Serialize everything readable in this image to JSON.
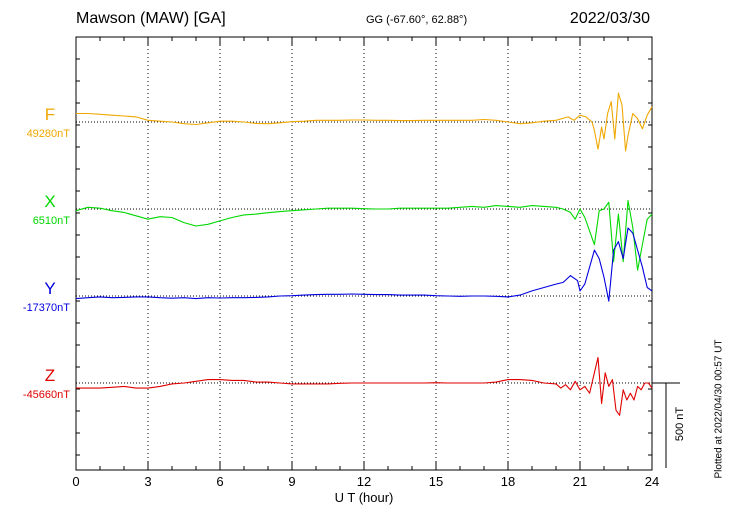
{
  "header": {
    "title": "Mawson (MAW)  [GA]",
    "coords": "GG (-67.60°,  62.88°)",
    "date": "2022/03/30"
  },
  "footer": {
    "plotted": "Plotted at 2022/04/30 00:57 UT",
    "scale_label": "500 nT"
  },
  "chart_data": {
    "type": "line",
    "xlabel": "U T (hour)",
    "xlim": [
      0,
      24
    ],
    "xticks": [
      "0",
      "3",
      "6",
      "9",
      "12",
      "15",
      "18",
      "21",
      "24"
    ],
    "grid": true,
    "scale_bar_nT": 500,
    "series": [
      {
        "name": "F",
        "baseline_label": "49280nT",
        "baseline": 49280,
        "color": "#f0a800",
        "x": [
          0,
          0.5,
          1,
          1.5,
          2,
          2.5,
          3,
          3.5,
          4,
          4.5,
          5,
          5.5,
          6,
          6.5,
          7,
          7.5,
          8,
          8.5,
          9,
          9.5,
          10,
          10.5,
          11,
          11.5,
          12,
          12.5,
          13,
          13.5,
          14,
          14.5,
          15,
          15.5,
          16,
          16.5,
          17,
          17.5,
          18,
          18.5,
          19,
          19.5,
          20,
          20.25,
          20.5,
          20.75,
          21,
          21.25,
          21.5,
          21.6,
          21.75,
          21.9,
          22,
          22.15,
          22.3,
          22.45,
          22.6,
          22.75,
          22.9,
          23,
          23.2,
          23.4,
          23.6,
          23.8,
          24
        ],
        "values": [
          49330,
          49330,
          49325,
          49320,
          49315,
          49310,
          49290,
          49285,
          49280,
          49270,
          49265,
          49275,
          49285,
          49285,
          49280,
          49272,
          49270,
          49275,
          49282,
          49285,
          49290,
          49290,
          49290,
          49292,
          49292,
          49290,
          49290,
          49288,
          49288,
          49290,
          49290,
          49290,
          49290,
          49290,
          49295,
          49290,
          49280,
          49270,
          49275,
          49285,
          49290,
          49300,
          49310,
          49290,
          49320,
          49310,
          49280,
          49230,
          49120,
          49250,
          49180,
          49330,
          49400,
          49180,
          49450,
          49380,
          49110,
          49200,
          49330,
          49300,
          49240,
          49320,
          49370
        ]
      },
      {
        "name": "X",
        "baseline_label": "6510nT",
        "baseline": 6510,
        "color": "#00d800",
        "x": [
          0,
          0.5,
          1,
          1.5,
          2,
          2.5,
          3,
          3.5,
          4,
          4.5,
          5,
          5.5,
          6,
          6.5,
          7,
          7.5,
          8,
          8.5,
          9,
          9.5,
          10,
          10.5,
          11,
          11.5,
          12,
          12.5,
          13,
          13.5,
          14,
          14.5,
          15,
          15.5,
          16,
          16.5,
          17,
          17.5,
          18,
          18.5,
          19,
          19.5,
          20,
          20.3,
          20.6,
          20.8,
          21,
          21.2,
          21.4,
          21.6,
          21.8,
          22,
          22.2,
          22.4,
          22.6,
          22.8,
          23,
          23.2,
          23.4,
          23.6,
          23.8,
          24
        ],
        "values": [
          6500,
          6520,
          6515,
          6500,
          6490,
          6470,
          6450,
          6465,
          6460,
          6430,
          6410,
          6420,
          6440,
          6460,
          6475,
          6480,
          6488,
          6495,
          6500,
          6505,
          6510,
          6515,
          6515,
          6515,
          6512,
          6510,
          6510,
          6515,
          6515,
          6515,
          6515,
          6515,
          6520,
          6525,
          6520,
          6530,
          6525,
          6520,
          6530,
          6525,
          6520,
          6510,
          6490,
          6450,
          6510,
          6460,
          6380,
          6300,
          6500,
          6510,
          6550,
          6200,
          6480,
          6200,
          6560,
          6400,
          6150,
          6300,
          6450,
          6480
        ]
      },
      {
        "name": "Y",
        "baseline_label": "-17370nT",
        "baseline": -17370,
        "color": "#0000e0",
        "x": [
          0,
          0.5,
          1,
          1.5,
          2,
          2.5,
          3,
          3.5,
          4,
          4.5,
          5,
          5.5,
          6,
          6.5,
          7,
          7.5,
          8,
          8.5,
          9,
          9.5,
          10,
          10.5,
          11,
          11.5,
          12,
          12.5,
          13,
          13.5,
          14,
          14.5,
          15,
          15.5,
          16,
          16.5,
          17,
          17.5,
          18,
          18.5,
          19,
          19.5,
          20,
          20.3,
          20.6,
          20.9,
          21,
          21.2,
          21.4,
          21.6,
          21.8,
          22,
          22.2,
          22.4,
          22.6,
          22.8,
          23,
          23.2,
          23.4,
          23.6,
          23.8,
          24
        ],
        "values": [
          -17385,
          -17380,
          -17375,
          -17380,
          -17378,
          -17375,
          -17375,
          -17380,
          -17383,
          -17380,
          -17385,
          -17380,
          -17382,
          -17380,
          -17380,
          -17378,
          -17375,
          -17370,
          -17368,
          -17365,
          -17362,
          -17360,
          -17360,
          -17358,
          -17360,
          -17362,
          -17362,
          -17365,
          -17365,
          -17365,
          -17368,
          -17370,
          -17372,
          -17370,
          -17370,
          -17372,
          -17375,
          -17365,
          -17340,
          -17320,
          -17300,
          -17290,
          -17250,
          -17280,
          -17340,
          -17300,
          -17200,
          -17100,
          -17150,
          -17260,
          -17400,
          -17100,
          -17050,
          -17150,
          -16970,
          -17000,
          -17100,
          -17200,
          -17320,
          -17340
        ]
      },
      {
        "name": "Z",
        "baseline_label": "-45660nT",
        "baseline": -45660,
        "color": "#e00000",
        "x": [
          0,
          0.5,
          1,
          1.5,
          2,
          2.5,
          3,
          3.5,
          4,
          4.5,
          5,
          5.5,
          6,
          6.5,
          7,
          7.5,
          8,
          8.5,
          9,
          9.5,
          10,
          10.5,
          11,
          11.5,
          12,
          12.5,
          13,
          13.5,
          14,
          14.5,
          15,
          15.5,
          16,
          16.5,
          17,
          17.5,
          18,
          18.5,
          19,
          19.5,
          20,
          20.2,
          20.4,
          20.6,
          20.8,
          21,
          21.2,
          21.4,
          21.6,
          21.75,
          21.9,
          22.05,
          22.2,
          22.35,
          22.5,
          22.65,
          22.8,
          22.95,
          23.1,
          23.25,
          23.4,
          23.55,
          23.7,
          23.85,
          24
        ],
        "values": [
          -45690,
          -45690,
          -45690,
          -45685,
          -45680,
          -45690,
          -45690,
          -45680,
          -45665,
          -45660,
          -45650,
          -45640,
          -45640,
          -45645,
          -45645,
          -45655,
          -45655,
          -45660,
          -45665,
          -45665,
          -45665,
          -45665,
          -45662,
          -45660,
          -45660,
          -45660,
          -45660,
          -45660,
          -45660,
          -45660,
          -45658,
          -45660,
          -45660,
          -45660,
          -45660,
          -45655,
          -45640,
          -45640,
          -45645,
          -45660,
          -45665,
          -45690,
          -45670,
          -45700,
          -45650,
          -45700,
          -45680,
          -45720,
          -45600,
          -45510,
          -45780,
          -45600,
          -45680,
          -45640,
          -45820,
          -45850,
          -45700,
          -45760,
          -45720,
          -45760,
          -45680,
          -45700,
          -45660,
          -45660,
          -45690
        ]
      }
    ]
  }
}
